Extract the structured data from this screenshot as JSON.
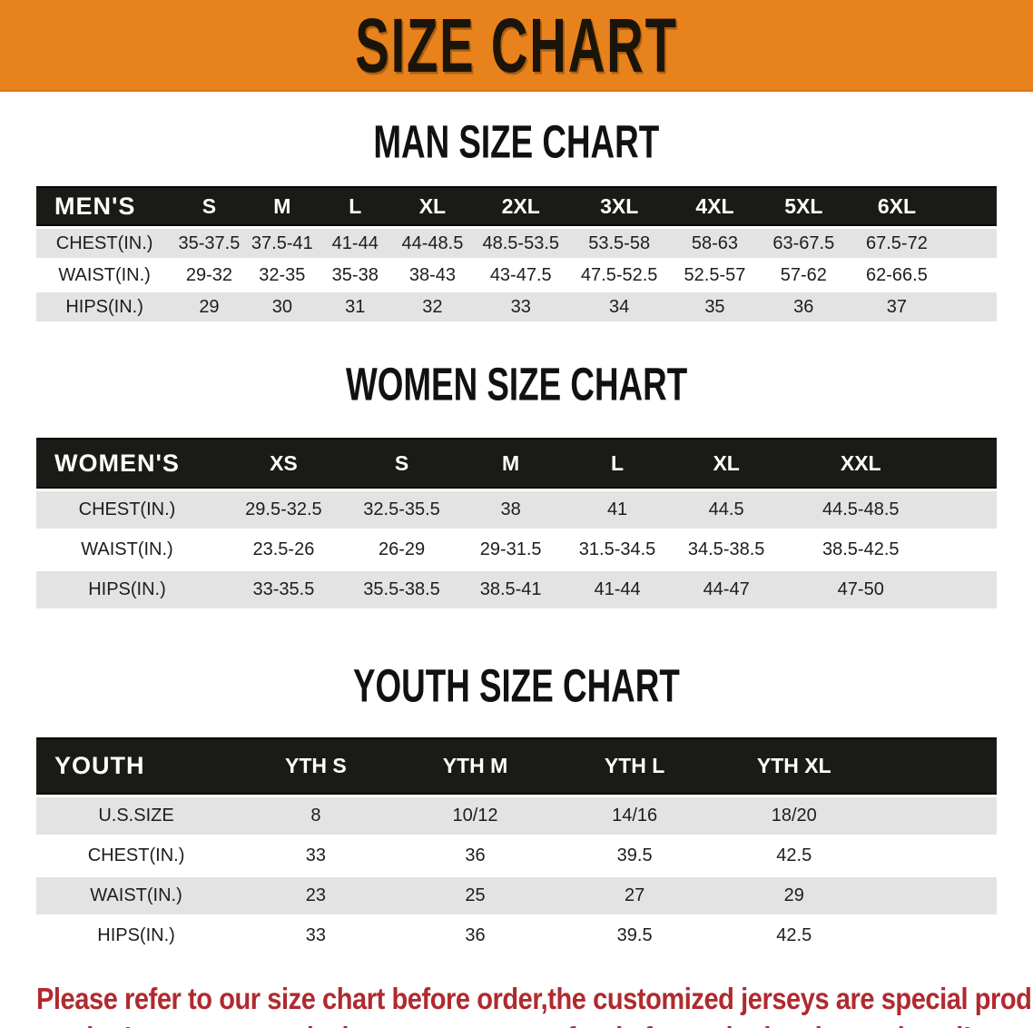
{
  "banner": {
    "title": "SIZE CHART"
  },
  "headings": {
    "men": "MAN SIZE CHART",
    "women": "WOMEN SIZE CHART",
    "youth": "YOUTH SIZE CHART"
  },
  "colors": {
    "banner_orange": "#E8821C",
    "table_header_black": "#1A1A17",
    "row_gray": "#E3E3E3",
    "disclaimer_red": "#B02A2F"
  },
  "tables": {
    "men": {
      "label": "MEN'S",
      "sizes": [
        "S",
        "M",
        "L",
        "XL",
        "2XL",
        "3XL",
        "4XL",
        "5XL",
        "6XL"
      ],
      "rows": [
        {
          "label": "CHEST(IN.)",
          "values": [
            "35-37.5",
            "37.5-41",
            "41-44",
            "44-48.5",
            "48.5-53.5",
            "53.5-58",
            "58-63",
            "63-67.5",
            "67.5-72"
          ]
        },
        {
          "label": "WAIST(IN.)",
          "values": [
            "29-32",
            "32-35",
            "35-38",
            "38-43",
            "43-47.5",
            "47.5-52.5",
            "52.5-57",
            "57-62",
            "62-66.5"
          ]
        },
        {
          "label": "HIPS(IN.)",
          "values": [
            "29",
            "30",
            "31",
            "32",
            "33",
            "34",
            "35",
            "36",
            "37"
          ]
        }
      ]
    },
    "women": {
      "label": "WOMEN'S",
      "sizes": [
        "XS",
        "S",
        "M",
        "L",
        "XL",
        "XXL"
      ],
      "rows": [
        {
          "label": "CHEST(IN.)",
          "values": [
            "29.5-32.5",
            "32.5-35.5",
            "38",
            "41",
            "44.5",
            "44.5-48.5"
          ]
        },
        {
          "label": "WAIST(IN.)",
          "values": [
            "23.5-26",
            "26-29",
            "29-31.5",
            "31.5-34.5",
            "34.5-38.5",
            "38.5-42.5"
          ]
        },
        {
          "label": "HIPS(IN.)",
          "values": [
            "33-35.5",
            "35.5-38.5",
            "38.5-41",
            "41-44",
            "44-47",
            "47-50"
          ]
        }
      ]
    },
    "youth": {
      "label": "YOUTH",
      "sizes": [
        "YTH S",
        "YTH M",
        "YTH L",
        "YTH XL"
      ],
      "rows": [
        {
          "label": "U.S.SIZE",
          "values": [
            "8",
            "10/12",
            "14/16",
            "18/20"
          ]
        },
        {
          "label": "CHEST(IN.)",
          "values": [
            "33",
            "36",
            "39.5",
            "42.5"
          ]
        },
        {
          "label": "WAIST(IN.)",
          "values": [
            "23",
            "25",
            "27",
            "29"
          ]
        },
        {
          "label": "HIPS(IN.)",
          "values": [
            "33",
            "36",
            "39.5",
            "42.5"
          ]
        }
      ]
    }
  },
  "disclaimer": {
    "line1": "Please refer to our size chart before order,the customized jerseys are special products,",
    "line2": "we don't accept cancel, change, teturn or refund after order has been placed!"
  }
}
